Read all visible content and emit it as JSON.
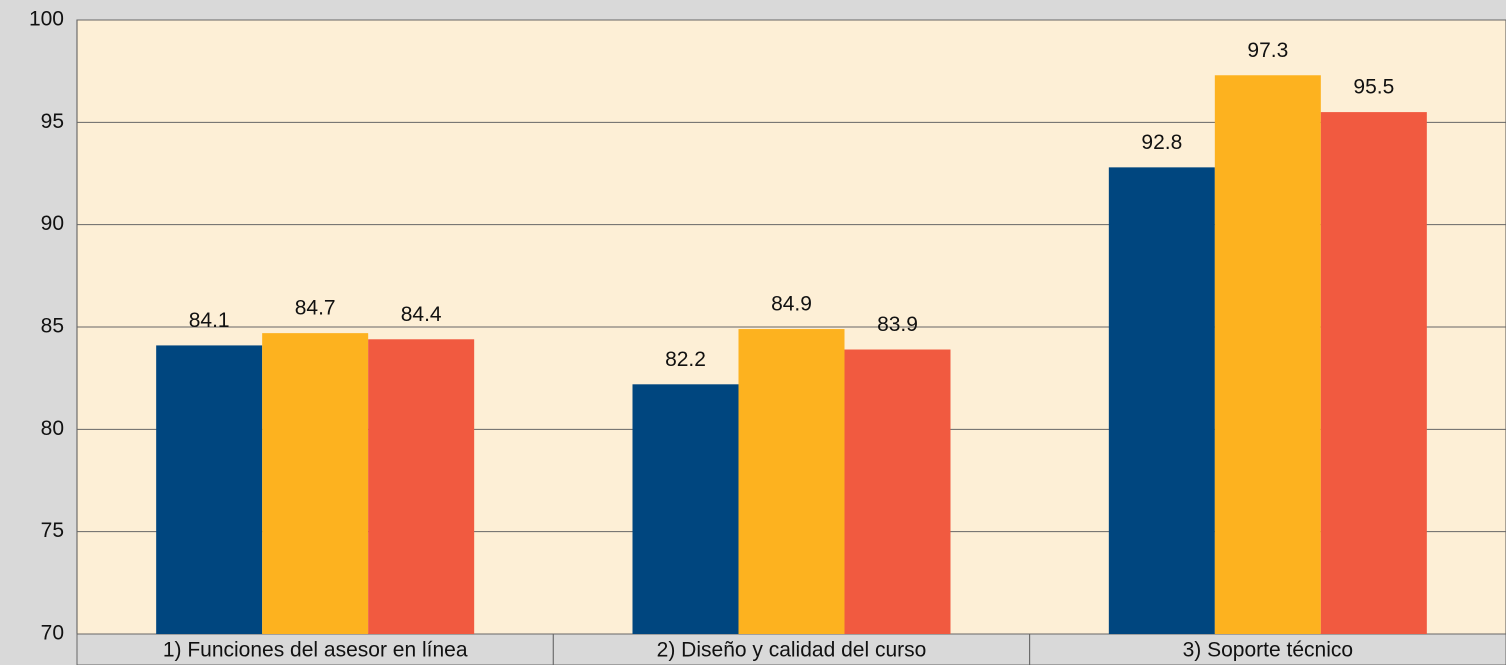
{
  "chart_data": {
    "type": "bar",
    "categories": [
      "1) Funciones del asesor en línea",
      "2) Diseño y calidad del curso",
      "3) Soporte técnico"
    ],
    "series": [
      {
        "color": "#00467f",
        "values": [
          84.1,
          82.2,
          92.8
        ]
      },
      {
        "color": "#fdb21f",
        "values": [
          84.7,
          84.9,
          97.3
        ]
      },
      {
        "color": "#f15a40",
        "values": [
          84.4,
          83.9,
          95.5
        ]
      }
    ],
    "ylim": [
      70,
      100
    ],
    "yticks": [
      70,
      75,
      80,
      85,
      90,
      95,
      100
    ],
    "grid": true
  }
}
